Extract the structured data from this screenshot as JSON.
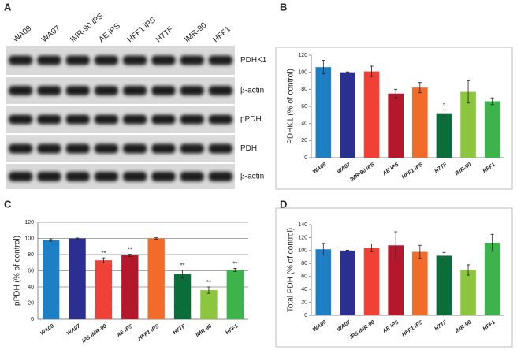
{
  "blot": {
    "panel": "A",
    "lanes": [
      "WA09",
      "WA07",
      "IMR-90 iPS",
      "AE iPS",
      "HFF1 iPS",
      "H7TF",
      "IMR-90",
      "HFF1"
    ],
    "rows": [
      "PDHK1",
      "β-actin",
      "pPDH",
      "PDH",
      "β-actin"
    ]
  },
  "chart_data": [
    {
      "type": "bar",
      "panel": "B",
      "ylabel": "PDHK1 (% of control)",
      "categories": [
        "WA09",
        "WA07",
        "IMR-90 iPS",
        "AE iPS",
        "HFF1 iPS",
        "H7TF",
        "IMR-90",
        "HFF1"
      ],
      "values": [
        106,
        100,
        101,
        75,
        82,
        52,
        77,
        66
      ],
      "errors": [
        8,
        0.5,
        6,
        5,
        6,
        4,
        13,
        4
      ],
      "significance": [
        null,
        null,
        null,
        null,
        null,
        "*",
        null,
        null
      ],
      "colors": [
        "#1f7fc4",
        "#2b2f8f",
        "#ef4136",
        "#b5172d",
        "#f26b2a",
        "#0b6e3a",
        "#8cc63f",
        "#3cb44b"
      ],
      "ylim": [
        0,
        120
      ],
      "yticks": [
        0,
        20,
        40,
        60,
        80,
        100,
        120
      ],
      "grid": false,
      "frame": true
    },
    {
      "type": "bar",
      "panel": "C",
      "ylabel": "pPDH (% of control)",
      "categories": [
        "WA09",
        "WA07",
        "iPS IMR-90",
        "AE iPS",
        "HFF1 iPS",
        "H7TF",
        "IMR-90",
        "HFF1"
      ],
      "values": [
        98,
        100,
        73,
        79,
        100,
        56,
        36,
        61
      ],
      "errors": [
        1.5,
        0.5,
        3,
        1.5,
        1,
        5,
        4,
        2
      ],
      "significance": [
        null,
        null,
        "**",
        "**",
        null,
        "**",
        "**",
        "**"
      ],
      "colors": [
        "#1f7fc4",
        "#2b2f8f",
        "#ef4136",
        "#b5172d",
        "#f26b2a",
        "#0b6e3a",
        "#8cc63f",
        "#3cb44b"
      ],
      "ylim": [
        0,
        120
      ],
      "yticks": [
        0,
        20,
        40,
        60,
        80,
        100,
        120
      ],
      "grid": true,
      "frame": false
    },
    {
      "type": "bar",
      "panel": "D",
      "ylabel": "Total PDH (% of control)",
      "categories": [
        "WA09",
        "WA07",
        "iPS IMR-90",
        "AE iPS",
        "HFF1 iPS",
        "H7TF",
        "IMR-90",
        "HFF1"
      ],
      "values": [
        102,
        100,
        104,
        108,
        98,
        92,
        70,
        112
      ],
      "errors": [
        9,
        0.5,
        6,
        21,
        10,
        5,
        8,
        13
      ],
      "significance": [
        null,
        null,
        null,
        null,
        null,
        null,
        null,
        null
      ],
      "colors": [
        "#1f7fc4",
        "#2b2f8f",
        "#ef4136",
        "#b5172d",
        "#f26b2a",
        "#0b6e3a",
        "#8cc63f",
        "#3cb44b"
      ],
      "ylim": [
        0,
        140
      ],
      "yticks": [
        0,
        20,
        40,
        60,
        80,
        100,
        120,
        140
      ],
      "grid": false,
      "frame": true
    }
  ]
}
